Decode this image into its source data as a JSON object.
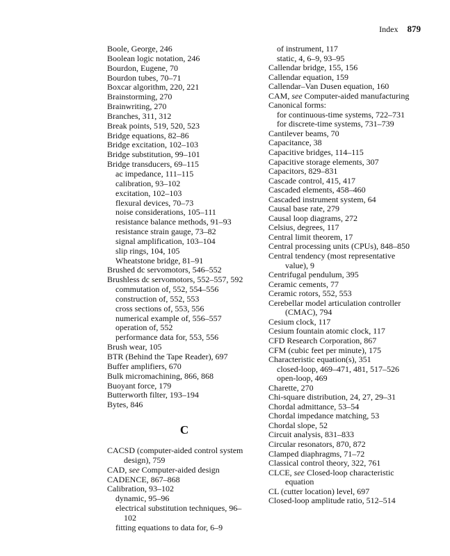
{
  "header": {
    "section": "Index",
    "page_number": "879"
  },
  "columns": {
    "left": [
      {
        "t": "Boole, George, 246",
        "l": 0
      },
      {
        "t": "Boolean logic notation, 246",
        "l": 0
      },
      {
        "t": "Bourdon, Eugene, 70",
        "l": 0
      },
      {
        "t": "Bourdon tubes, 70–71",
        "l": 0
      },
      {
        "t": "Boxcar algorithm, 220, 221",
        "l": 0
      },
      {
        "t": "Brainstorming, 270",
        "l": 0
      },
      {
        "t": "Brainwriting, 270",
        "l": 0
      },
      {
        "t": "Branches, 311, 312",
        "l": 0
      },
      {
        "t": "Break points, 519, 520, 523",
        "l": 0
      },
      {
        "t": "Bridge equations, 82–86",
        "l": 0
      },
      {
        "t": "Bridge excitation, 102–103",
        "l": 0
      },
      {
        "t": "Bridge substitution, 99–101",
        "l": 0
      },
      {
        "t": "Bridge transducers, 69–115",
        "l": 0
      },
      {
        "t": "ac impedance, 111–115",
        "l": 1
      },
      {
        "t": "calibration, 93–102",
        "l": 1
      },
      {
        "t": "excitation, 102–103",
        "l": 1
      },
      {
        "t": "flexural devices, 70–73",
        "l": 1
      },
      {
        "t": "noise considerations, 105–111",
        "l": 1
      },
      {
        "t": "resistance balance methods, 91–93",
        "l": 1
      },
      {
        "t": "resistance strain gauge, 73–82",
        "l": 1
      },
      {
        "t": "signal amplification, 103–104",
        "l": 1
      },
      {
        "t": "slip rings, 104, 105",
        "l": 1
      },
      {
        "t": "Wheatstone bridge, 81–91",
        "l": 1
      },
      {
        "t": "Brushed dc servomotors, 546–552",
        "l": 0
      },
      {
        "t": "Brushless dc servomotors, 552–557, 592",
        "l": 0
      },
      {
        "t": "commutation of, 552, 554–556",
        "l": 1
      },
      {
        "t": "construction of, 552, 553",
        "l": 1
      },
      {
        "t": "cross sections of, 553, 556",
        "l": 1
      },
      {
        "t": "numerical example of, 556–557",
        "l": 1
      },
      {
        "t": "operation of, 552",
        "l": 1
      },
      {
        "t": "performance data for, 553, 556",
        "l": 1
      },
      {
        "t": "Brush wear, 105",
        "l": 0
      },
      {
        "t": "BTR (Behind the Tape Reader), 697",
        "l": 0
      },
      {
        "t": "Buffer amplifiers, 670",
        "l": 0
      },
      {
        "t": "Bulk micromachining, 866, 868",
        "l": 0
      },
      {
        "t": "Buoyant force, 179",
        "l": 0
      },
      {
        "t": "Butterworth filter, 193–194",
        "l": 0
      },
      {
        "t": "Bytes, 846",
        "l": 0
      },
      {
        "section": "C"
      },
      {
        "t": "CACSD (computer-aided control system",
        "l": 0
      },
      {
        "t": "design), 759",
        "l": 2
      },
      {
        "pre": "CAD, ",
        "see": "see",
        "post": " Computer-aided design",
        "l": 0
      },
      {
        "t": "CADENCE, 867–868",
        "l": 0
      },
      {
        "t": "Calibration, 93–102",
        "l": 0
      },
      {
        "t": "dynamic, 95–96",
        "l": 1
      },
      {
        "t": "electrical substitution techniques, 96–",
        "l": 1
      },
      {
        "t": "102",
        "l": 2
      },
      {
        "t": "fitting equations to data for, 6–9",
        "l": 1
      }
    ],
    "right": [
      {
        "t": "of instrument, 117",
        "l": 1
      },
      {
        "t": "static, 4, 6–9, 93–95",
        "l": 1
      },
      {
        "t": "Callendar bridge, 155, 156",
        "l": 0
      },
      {
        "t": "Callendar equation, 159",
        "l": 0
      },
      {
        "t": "Callendar–Van Dusen equation, 160",
        "l": 0
      },
      {
        "pre": "CAM, ",
        "see": "see",
        "post": " Computer-aided manufacturing",
        "l": 0
      },
      {
        "t": "Canonical forms:",
        "l": 0
      },
      {
        "t": "for continuous-time systems, 722–731",
        "l": 1
      },
      {
        "t": "for discrete-time systems, 731–739",
        "l": 1
      },
      {
        "t": "Cantilever beams, 70",
        "l": 0
      },
      {
        "t": "Capacitance, 38",
        "l": 0
      },
      {
        "t": "Capacitive bridges, 114–115",
        "l": 0
      },
      {
        "t": "Capacitive storage elements, 307",
        "l": 0
      },
      {
        "t": "Capacitors, 829–831",
        "l": 0
      },
      {
        "t": "Cascade control, 415, 417",
        "l": 0
      },
      {
        "t": "Cascaded elements, 458–460",
        "l": 0
      },
      {
        "t": "Cascaded instrument system, 64",
        "l": 0
      },
      {
        "t": "Causal base rate, 279",
        "l": 0
      },
      {
        "t": "Causal loop diagrams, 272",
        "l": 0
      },
      {
        "t": "Celsius, degrees, 117",
        "l": 0
      },
      {
        "t": "Central limit theorem, 17",
        "l": 0
      },
      {
        "t": "Central processing units (CPUs), 848–850",
        "l": 0
      },
      {
        "t": "Central tendency (most representative",
        "l": 0
      },
      {
        "t": "value), 9",
        "l": 2
      },
      {
        "t": "Centrifugal pendulum, 395",
        "l": 0
      },
      {
        "t": "Ceramic cements, 77",
        "l": 0
      },
      {
        "t": "Ceramic rotors, 552, 553",
        "l": 0
      },
      {
        "t": "Cerebellar model articulation controller",
        "l": 0
      },
      {
        "t": "(CMAC), 794",
        "l": 2
      },
      {
        "t": "Cesium clock, 117",
        "l": 0
      },
      {
        "t": "Cesium fountain atomic clock, 117",
        "l": 0
      },
      {
        "t": "CFD Research Corporation, 867",
        "l": 0
      },
      {
        "t": "CFM (cubic feet per minute), 175",
        "l": 0
      },
      {
        "t": "Characteristic equation(s), 351",
        "l": 0
      },
      {
        "t": "closed-loop, 469–471, 481, 517–526",
        "l": 1
      },
      {
        "t": "open-loop, 469",
        "l": 1
      },
      {
        "t": "Charette, 270",
        "l": 0
      },
      {
        "t": "Chi-square distribution, 24, 27, 29–31",
        "l": 0
      },
      {
        "t": "Chordal admittance, 53–54",
        "l": 0
      },
      {
        "t": "Chordal impedance matching, 53",
        "l": 0
      },
      {
        "t": "Chordal slope, 52",
        "l": 0
      },
      {
        "t": "Circuit analysis, 831–833",
        "l": 0
      },
      {
        "t": "Circular resonators, 870, 872",
        "l": 0
      },
      {
        "t": "Clamped diaphragms, 71–72",
        "l": 0
      },
      {
        "t": "Classical control theory, 322, 761",
        "l": 0
      },
      {
        "pre": "CLCE, ",
        "see": "see",
        "post": " Closed-loop characteristic",
        "l": 0
      },
      {
        "t": "equation",
        "l": 2
      },
      {
        "t": "CL (cutter location) level, 697",
        "l": 0
      },
      {
        "t": "Closed-loop amplitude ratio, 512–514",
        "l": 0
      }
    ]
  }
}
